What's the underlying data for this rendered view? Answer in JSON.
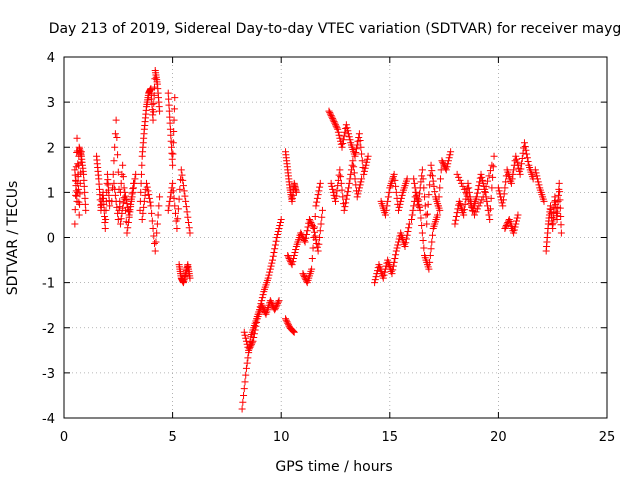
{
  "chart_data": {
    "type": "scatter",
    "title": "Day 213 of 2019, Sidereal Day-to-day VTEC variation (SDTVAR) for receiver mayg",
    "xlabel": "GPS time / hours",
    "ylabel": "SDTVAR / TECUs",
    "xlim": [
      0,
      25
    ],
    "ylim": [
      -4,
      4
    ],
    "x_ticks": [
      0,
      5,
      10,
      15,
      20,
      25
    ],
    "y_ticks": [
      -4,
      -3,
      -2,
      -1,
      0,
      1,
      2,
      3,
      4
    ],
    "grid": true,
    "marker": "+",
    "color": "#ff0000",
    "series": [
      {
        "name": "SDTVAR",
        "segments": [
          {
            "x": [
              0.5,
              0.6,
              0.7,
              0.8,
              0.9,
              1.0
            ],
            "y": [
              1.5,
              0.8,
              2.0,
              1.8,
              1.4,
              0.6
            ]
          },
          {
            "x": [
              0.5,
              0.6,
              0.7,
              0.8
            ],
            "y": [
              0.3,
              2.2,
              0.5,
              1.9
            ]
          },
          {
            "x": [
              1.5,
              1.6,
              1.7,
              1.8,
              1.9,
              2.0,
              2.1
            ],
            "y": [
              1.8,
              1.3,
              0.6,
              1.0,
              0.2,
              1.4,
              0.7
            ]
          },
          {
            "x": [
              2.2,
              2.4,
              2.6,
              2.8,
              3.0,
              3.2
            ],
            "y": [
              0.8,
              2.6,
              0.3,
              1.0,
              0.5,
              1.2
            ]
          },
          {
            "x": [
              2.3,
              2.5,
              2.7,
              2.9,
              3.1,
              3.3
            ],
            "y": [
              1.2,
              0.4,
              1.6,
              0.1,
              0.8,
              1.4
            ]
          },
          {
            "x": [
              3.5,
              3.6,
              3.7,
              3.8,
              3.9,
              4.0,
              4.1,
              4.2,
              4.3,
              4.4
            ],
            "y": [
              0.6,
              1.8,
              2.4,
              2.9,
              3.2,
              3.3,
              2.6,
              3.7,
              3.4,
              2.8
            ]
          },
          {
            "x": [
              3.6,
              3.8,
              4.0,
              4.2,
              4.4
            ],
            "y": [
              0.4,
              1.2,
              0.7,
              -0.3,
              0.9
            ]
          },
          {
            "x": [
              4.8,
              4.9,
              5.0,
              5.1
            ],
            "y": [
              3.2,
              2.4,
              1.6,
              3.1
            ]
          },
          {
            "x": [
              4.8,
              5.0,
              5.2,
              5.4,
              5.6,
              5.8
            ],
            "y": [
              0.6,
              1.2,
              0.2,
              1.5,
              0.8,
              0.1
            ]
          },
          {
            "x": [
              5.3,
              5.4,
              5.5,
              5.6,
              5.7,
              5.8
            ],
            "y": [
              -0.6,
              -0.9,
              -1.0,
              -0.8,
              -0.6,
              -0.9
            ]
          },
          {
            "x": [
              8.2,
              8.4,
              8.6,
              8.8,
              9.0,
              9.2,
              9.4,
              9.6,
              9.8,
              10.0
            ],
            "y": [
              -3.8,
              -2.9,
              -2.2,
              -1.9,
              -1.6,
              -1.2,
              -0.9,
              -0.5,
              0.0,
              0.4
            ]
          },
          {
            "x": [
              8.3,
              8.5,
              8.7,
              8.9,
              9.1,
              9.3,
              9.5,
              9.7,
              9.9
            ],
            "y": [
              -2.1,
              -2.5,
              -2.3,
              -1.8,
              -1.5,
              -1.7,
              -1.4,
              -1.6,
              -1.4
            ]
          },
          {
            "x": [
              10.2,
              10.3,
              10.4,
              10.5,
              10.6,
              10.7
            ],
            "y": [
              1.9,
              1.5,
              1.1,
              0.8,
              1.2,
              1.0
            ]
          },
          {
            "x": [
              10.2,
              10.4,
              10.6
            ],
            "y": [
              -1.8,
              -2.0,
              -2.1
            ]
          },
          {
            "x": [
              10.3,
              10.5,
              10.7,
              10.9,
              11.1,
              11.3,
              11.5,
              11.7,
              11.9
            ],
            "y": [
              -0.4,
              -0.6,
              -0.2,
              0.1,
              -0.1,
              0.4,
              0.2,
              -0.3,
              0.6
            ]
          },
          {
            "x": [
              11.0,
              11.2,
              11.4,
              11.6,
              11.8
            ],
            "y": [
              -0.8,
              -1.0,
              -0.7,
              0.7,
              1.2
            ]
          },
          {
            "x": [
              12.2,
              12.4,
              12.6,
              12.8,
              13.0,
              13.2,
              13.4,
              13.6,
              13.8,
              14.0
            ],
            "y": [
              2.8,
              2.6,
              2.4,
              2.0,
              2.5,
              2.1,
              1.8,
              2.3,
              1.4,
              1.8
            ]
          },
          {
            "x": [
              12.3,
              12.5,
              12.7,
              12.9,
              13.1,
              13.3,
              13.5,
              13.7
            ],
            "y": [
              1.2,
              0.8,
              1.5,
              0.6,
              1.1,
              1.7,
              0.9,
              1.3
            ]
          },
          {
            "x": [
              14.3,
              14.5,
              14.7,
              14.9,
              15.1,
              15.3,
              15.5,
              15.7,
              15.9
            ],
            "y": [
              -1.0,
              -0.6,
              -0.9,
              -0.5,
              -0.8,
              -0.3,
              0.1,
              -0.2,
              0.3
            ]
          },
          {
            "x": [
              14.6,
              14.8,
              15.0,
              15.2,
              15.4,
              15.6,
              15.8
            ],
            "y": [
              0.8,
              0.5,
              1.1,
              1.4,
              0.6,
              1.0,
              1.3
            ]
          },
          {
            "x": [
              16.0,
              16.2,
              16.4,
              16.6,
              16.8,
              17.0,
              17.2,
              17.4,
              17.6,
              17.8
            ],
            "y": [
              0.4,
              1.0,
              0.6,
              -0.4,
              -0.7,
              0.2,
              0.5,
              1.7,
              1.5,
              1.9
            ]
          },
          {
            "x": [
              16.1,
              16.3,
              16.5,
              16.7,
              16.9,
              17.1,
              17.3
            ],
            "y": [
              1.3,
              0.7,
              1.5,
              0.3,
              1.6,
              0.9,
              0.6
            ]
          },
          {
            "x": [
              18.0,
              18.2,
              18.4,
              18.6,
              18.8,
              19.0,
              19.2,
              19.4,
              19.6,
              19.8
            ],
            "y": [
              0.3,
              0.8,
              0.5,
              1.2,
              0.6,
              0.9,
              1.4,
              1.0,
              0.4,
              1.8
            ]
          },
          {
            "x": [
              18.1,
              18.5,
              18.9,
              19.3,
              19.7
            ],
            "y": [
              1.4,
              1.0,
              0.5,
              0.9,
              1.6
            ]
          },
          {
            "x": [
              20.0,
              20.2,
              20.4,
              20.6,
              20.8,
              21.0,
              21.2,
              21.4,
              21.6
            ],
            "y": [
              1.1,
              0.7,
              1.5,
              1.2,
              1.8,
              1.4,
              2.1,
              1.6,
              1.3
            ]
          },
          {
            "x": [
              20.3,
              20.5,
              20.7,
              20.9
            ],
            "y": [
              0.2,
              0.4,
              0.1,
              0.5
            ]
          },
          {
            "x": [
              21.7,
              21.9,
              22.1
            ],
            "y": [
              1.5,
              1.1,
              0.8
            ]
          },
          {
            "x": [
              22.2,
              22.3,
              22.4,
              22.5,
              22.6,
              22.7,
              22.8,
              22.9
            ],
            "y": [
              -0.3,
              0.3,
              0.7,
              0.2,
              0.9,
              0.4,
              1.2,
              0.1
            ]
          }
        ]
      }
    ]
  }
}
